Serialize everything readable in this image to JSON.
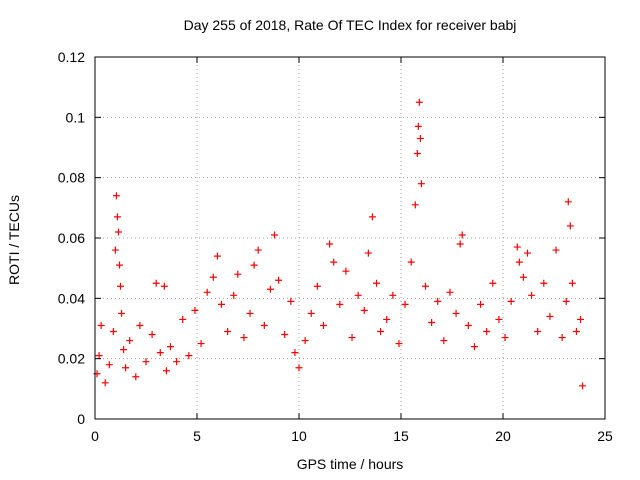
{
  "chart_data": {
    "type": "scatter",
    "title": "Day 255 of 2018, Rate Of TEC Index for receiver babj",
    "xlabel": "GPS time / hours",
    "ylabel": "ROTI / TECUs",
    "xlim": [
      0,
      25
    ],
    "ylim": [
      0,
      0.12
    ],
    "xticks": [
      "0",
      "5",
      "10",
      "15",
      "20",
      "25"
    ],
    "yticks": [
      "0",
      "0.02",
      "0.04",
      "0.06",
      "0.08",
      "0.1",
      "0.12"
    ],
    "grid": true,
    "marker": "+",
    "color": "#ff0000",
    "series": [
      {
        "x": [
          0.1,
          0.2,
          0.3,
          0.5,
          0.7,
          0.9,
          1.0,
          1.05,
          1.1,
          1.15,
          1.2,
          1.25,
          1.3,
          1.4,
          1.5,
          1.7,
          2.0,
          2.2,
          2.5,
          2.8,
          3.0,
          3.2,
          3.4,
          3.5,
          3.7,
          4.0,
          4.3,
          4.6,
          4.9,
          5.2,
          5.5,
          5.8,
          6.0,
          6.2,
          6.5,
          6.8,
          7.0,
          7.3,
          7.6,
          7.8,
          8.0,
          8.3,
          8.6,
          8.8,
          9.0,
          9.3,
          9.6,
          9.8,
          10.0,
          10.3,
          10.6,
          10.9,
          11.2,
          11.5,
          11.7,
          12.0,
          12.3,
          12.6,
          12.9,
          13.2,
          13.4,
          13.6,
          13.8,
          14.0,
          14.3,
          14.6,
          14.9,
          15.2,
          15.5,
          15.7,
          15.8,
          15.85,
          15.9,
          15.95,
          16.0,
          16.2,
          16.5,
          16.8,
          17.1,
          17.4,
          17.7,
          17.9,
          18.0,
          18.3,
          18.6,
          18.9,
          19.2,
          19.5,
          19.8,
          20.1,
          20.4,
          20.7,
          20.8,
          21.0,
          21.2,
          21.4,
          21.7,
          22.0,
          22.3,
          22.6,
          22.9,
          23.1,
          23.2,
          23.3,
          23.4,
          23.6,
          23.8,
          23.9
        ],
        "y": [
          0.015,
          0.021,
          0.031,
          0.012,
          0.018,
          0.029,
          0.056,
          0.074,
          0.067,
          0.062,
          0.051,
          0.044,
          0.035,
          0.023,
          0.017,
          0.026,
          0.014,
          0.031,
          0.019,
          0.028,
          0.045,
          0.022,
          0.044,
          0.016,
          0.024,
          0.019,
          0.033,
          0.021,
          0.036,
          0.025,
          0.042,
          0.047,
          0.054,
          0.038,
          0.029,
          0.041,
          0.048,
          0.027,
          0.035,
          0.051,
          0.056,
          0.031,
          0.043,
          0.061,
          0.046,
          0.028,
          0.039,
          0.022,
          0.017,
          0.026,
          0.035,
          0.044,
          0.031,
          0.058,
          0.052,
          0.038,
          0.049,
          0.027,
          0.041,
          0.036,
          0.055,
          0.067,
          0.045,
          0.029,
          0.033,
          0.041,
          0.025,
          0.038,
          0.052,
          0.071,
          0.088,
          0.097,
          0.105,
          0.093,
          0.078,
          0.044,
          0.032,
          0.039,
          0.026,
          0.042,
          0.035,
          0.058,
          0.061,
          0.031,
          0.024,
          0.038,
          0.029,
          0.045,
          0.033,
          0.027,
          0.039,
          0.057,
          0.052,
          0.047,
          0.055,
          0.041,
          0.029,
          0.045,
          0.034,
          0.056,
          0.027,
          0.039,
          0.072,
          0.064,
          0.045,
          0.029,
          0.033,
          0.011
        ]
      }
    ]
  }
}
